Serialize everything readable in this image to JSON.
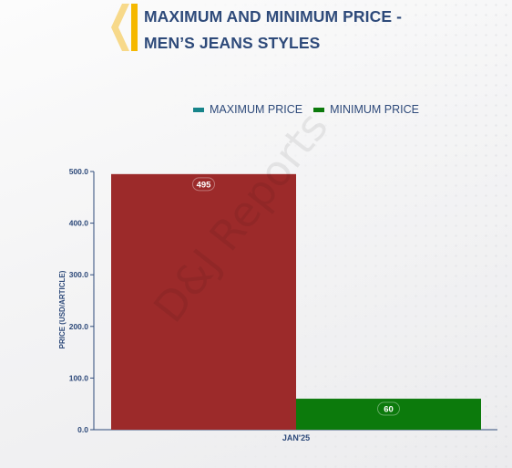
{
  "title": {
    "line1": "MAXIMUM AND MINIMUM PRICE -",
    "line2": "MEN’S JEANS STYLES"
  },
  "legend": [
    {
      "label": "MAXIMUM PRICE",
      "color": "#17848a"
    },
    {
      "label": "MINIMUM PRICE",
      "color": "#0c7a0c"
    }
  ],
  "watermark": "D&J Reports",
  "colors": {
    "accent": "#f5b800",
    "accent_light": "#f7d98a",
    "title": "#2e4a7a",
    "max_bar": "#9c2a2a",
    "min_bar": "#0c7a0c",
    "axis": "#2e4a7a"
  },
  "chart_data": {
    "type": "bar",
    "categories": [
      "JAN'25"
    ],
    "series": [
      {
        "name": "MAXIMUM PRICE",
        "values": [
          495
        ],
        "color": "#9c2a2a"
      },
      {
        "name": "MINIMUM PRICE",
        "values": [
          60
        ],
        "color": "#0c7a0c"
      }
    ],
    "ylabel": "PRICE (USD/ARTICLE)",
    "xlabel": "",
    "ylim": [
      0,
      500
    ],
    "yticks": [
      0,
      100,
      200,
      300,
      400,
      500
    ],
    "ytick_labels": [
      "0.0",
      "100.0",
      "200.0",
      "300.0",
      "400.0",
      "500.0"
    ],
    "data_labels": [
      "495",
      "60"
    ],
    "legend_position": "top-center",
    "grid": false
  }
}
